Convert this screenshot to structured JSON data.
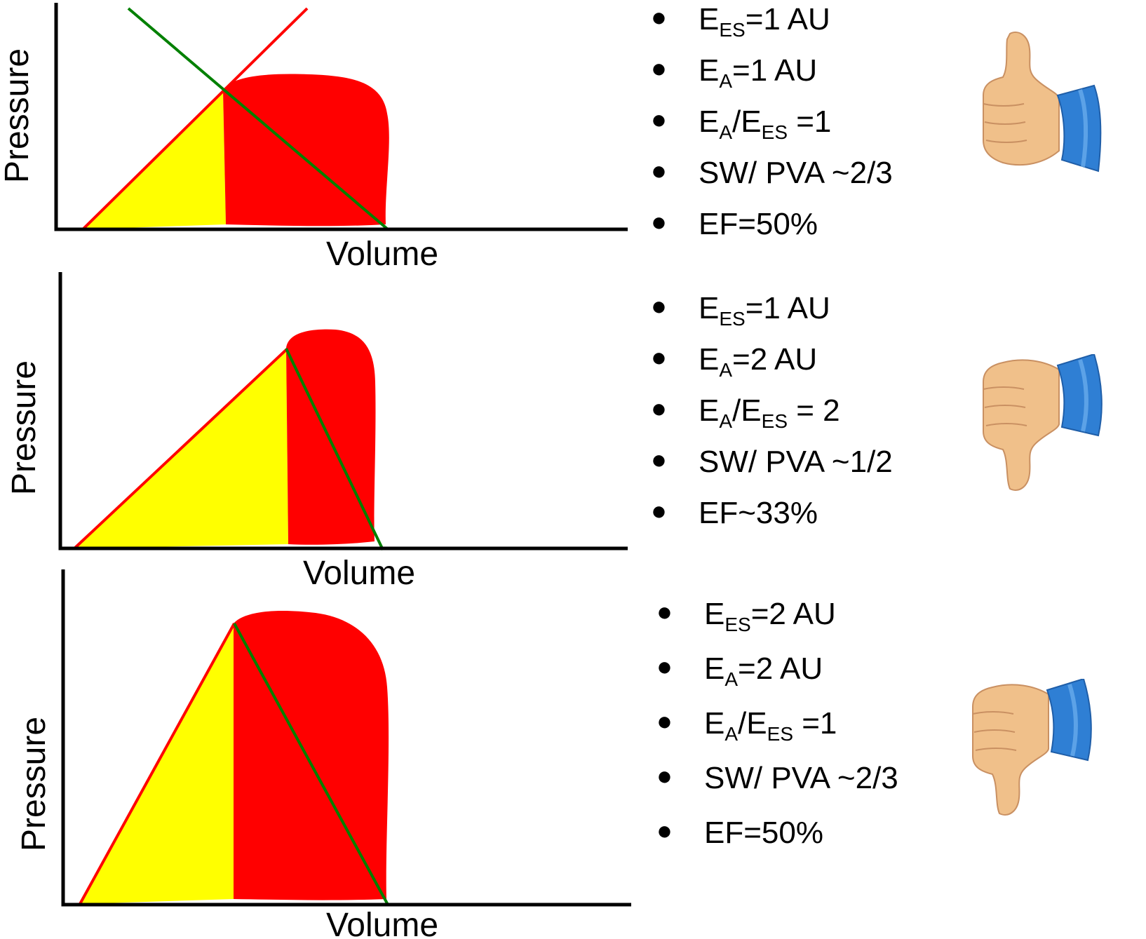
{
  "colors": {
    "stroke_work": "#ff0000",
    "potential_energy": "#ffff00",
    "espvr_line": "#ff0000",
    "arterial_elastance_line": "#008000",
    "axis": "#000000",
    "skin": "#f0c08a",
    "cuff": "#2f7fd4"
  },
  "panels": [
    {
      "axes": {
        "ylabel": "Pressure",
        "xlabel": "Volume"
      },
      "verdict": "thumbs-up",
      "params": [
        {
          "sym": "E",
          "sub": "ES",
          "rest": "=1 AU"
        },
        {
          "sym": "E",
          "sub": "A",
          "rest": "=1 AU"
        },
        {
          "sym": "E",
          "sub": "A",
          "sep": "/",
          "sym2": "E",
          "sub2": "ES",
          "rest": " =1"
        },
        {
          "text": "SW/ PVA ~2/3"
        },
        {
          "text": "EF=50%"
        }
      ]
    },
    {
      "axes": {
        "ylabel": "Pressure",
        "xlabel": "Volume"
      },
      "verdict": "thumbs-down",
      "params": [
        {
          "sym": "E",
          "sub": "ES",
          "rest": "=1 AU"
        },
        {
          "sym": "E",
          "sub": "A",
          "rest": "=2 AU"
        },
        {
          "sym": "E",
          "sub": "A",
          "sep": "/",
          "sym2": "E",
          "sub2": "ES",
          "rest": " = 2"
        },
        {
          "text": "SW/ PVA ~1/2"
        },
        {
          "text": "EF~33%"
        }
      ]
    },
    {
      "axes": {
        "ylabel": "Pressure",
        "xlabel": "Volume"
      },
      "verdict": "thumbs-down",
      "params": [
        {
          "sym": "E",
          "sub": "ES",
          "rest": "=2 AU"
        },
        {
          "sym": "E",
          "sub": "A",
          "rest": "=2 AU"
        },
        {
          "sym": "E",
          "sub": "A",
          "sep": "/",
          "sym2": "E",
          "sub2": "ES",
          "rest": " =1"
        },
        {
          "text": "SW/ PVA ~2/3"
        },
        {
          "text": "EF=50%"
        }
      ]
    }
  ]
}
